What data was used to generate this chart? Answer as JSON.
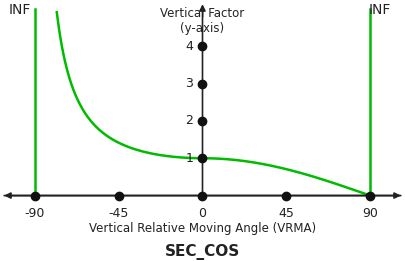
{
  "title": "SEC_COS",
  "ylabel_line1": "Vertical Factor",
  "ylabel_line2": "(y-axis)",
  "xlabel": "Vertical Relative Moving Angle (VRMA)",
  "x_ticks": [
    -90,
    -45,
    0,
    45,
    90
  ],
  "y_ticks": [
    1,
    2,
    3,
    4
  ],
  "xlim": [
    -108,
    108
  ],
  "ylim": [
    -0.25,
    5.2
  ],
  "curve_color": "#00bb00",
  "axis_color": "#222222",
  "dot_color": "#111111",
  "inf_label": "INF",
  "inf_fontsize": 10,
  "title_fontsize": 11,
  "label_fontsize": 8.5,
  "tick_fontsize": 9,
  "line_width": 1.8,
  "background_color": "#ffffff",
  "dot_size": 6,
  "inf_left_x": -104,
  "inf_left_y": 5.15,
  "inf_right_x": 89,
  "inf_right_y": 5.15,
  "asymptote_y_top": 5.0
}
